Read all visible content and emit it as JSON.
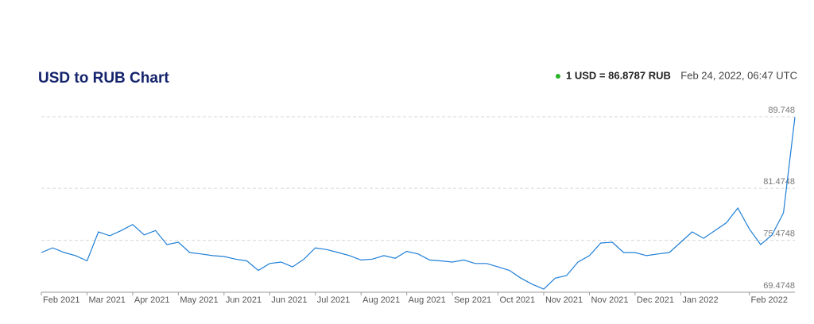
{
  "chart_data": {
    "type": "line",
    "title": "USD to RUB Chart",
    "rate_label": "1 USD = 86.8787 RUB",
    "timestamp": "Feb 24, 2022, 06:47 UTC",
    "categories": [
      "Feb 2021",
      null,
      null,
      null,
      "Mar 2021",
      null,
      null,
      null,
      "Apr 2021",
      null,
      null,
      null,
      "May 2021",
      null,
      null,
      null,
      "Jun 2021",
      null,
      null,
      null,
      "Jun 2021",
      null,
      null,
      null,
      "Jul 2021",
      null,
      null,
      null,
      "Aug 2021",
      null,
      null,
      null,
      "Aug 2021",
      null,
      null,
      null,
      "Sep 2021",
      null,
      null,
      null,
      "Oct 2021",
      null,
      null,
      null,
      "Nov 2021",
      null,
      null,
      null,
      "Nov 2021",
      null,
      null,
      null,
      "Dec 2021",
      null,
      null,
      null,
      "Jan 2022",
      null,
      null,
      null,
      null,
      null,
      "Feb 2022",
      null,
      null,
      null,
      null
    ],
    "series": [
      {
        "name": "USD/RUB",
        "color": "#1f7fd6",
        "values": [
          74.06,
          74.6,
          74.06,
          73.7,
          73.1,
          76.45,
          76.0,
          76.6,
          77.3,
          76.1,
          76.6,
          74.98,
          75.25,
          74.06,
          73.9,
          73.7,
          73.6,
          73.3,
          73.1,
          72.0,
          72.8,
          72.96,
          72.4,
          73.3,
          74.6,
          74.4,
          74.06,
          73.7,
          73.2,
          73.3,
          73.7,
          73.4,
          74.2,
          73.9,
          73.2,
          73.1,
          72.96,
          73.2,
          72.8,
          72.8,
          72.4,
          72.0,
          71.1,
          70.4,
          69.84,
          71.1,
          71.4,
          72.96,
          73.7,
          75.16,
          75.25,
          74.06,
          74.06,
          73.7,
          73.9,
          74.06,
          75.25,
          76.45,
          75.7,
          76.6,
          77.5,
          79.2,
          76.8,
          74.98,
          76.1,
          78.65,
          89.7
        ]
      }
    ],
    "ylim": [
      69.4748,
      89.748
    ],
    "yticks": [
      69.4748,
      75.4748,
      81.4748,
      89.748
    ],
    "grid": true
  }
}
